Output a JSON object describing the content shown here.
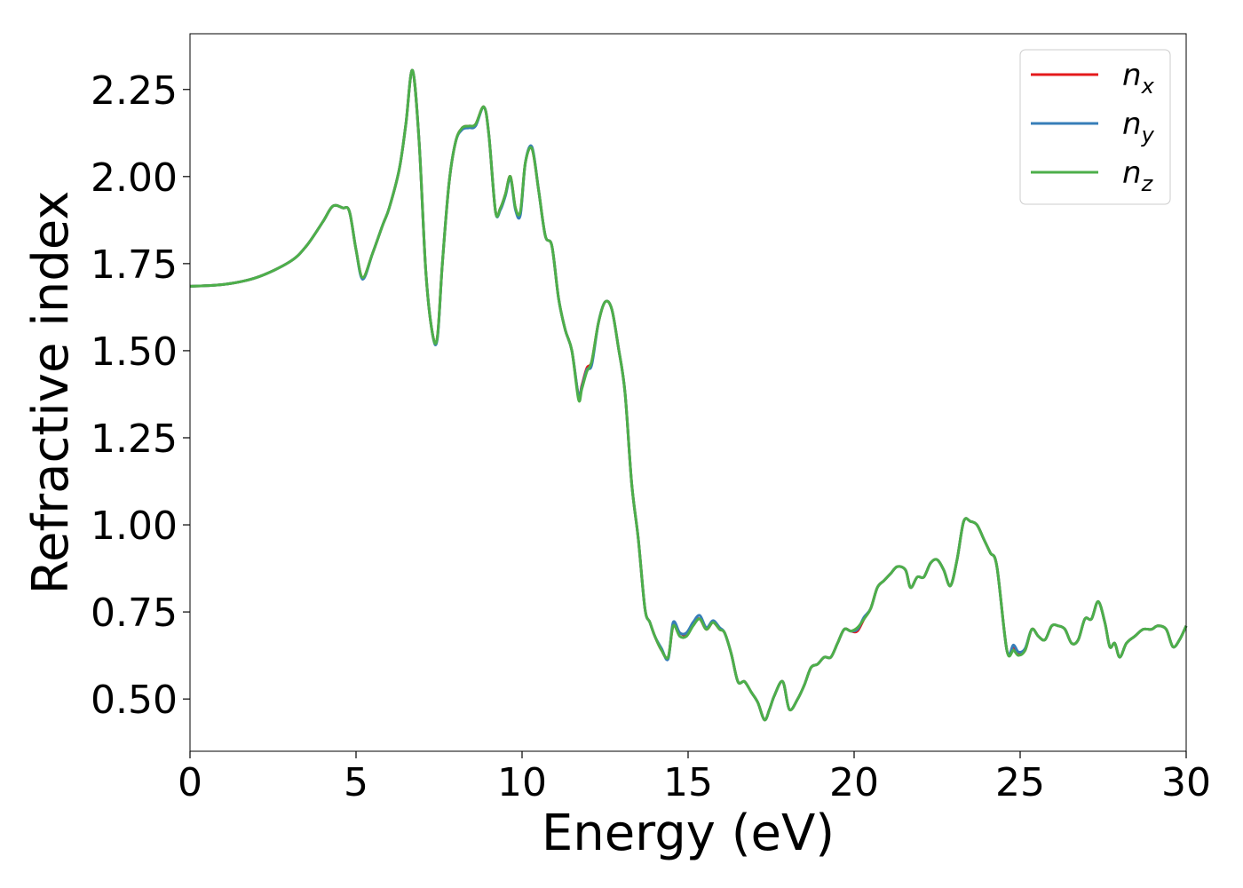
{
  "chart_data": {
    "type": "line",
    "xlabel": "Energy (eV)",
    "ylabel": "Refractive index",
    "xlim": [
      0,
      30
    ],
    "ylim": [
      0.35,
      2.41
    ],
    "xticks": [
      0,
      5,
      10,
      15,
      20,
      25,
      30
    ],
    "xtick_labels": [
      "0",
      "5",
      "10",
      "15",
      "20",
      "25",
      "30"
    ],
    "yticks": [
      0.5,
      0.75,
      1.0,
      1.25,
      1.5,
      1.75,
      2.0,
      2.25
    ],
    "ytick_labels": [
      "0.50",
      "0.75",
      "1.00",
      "1.25",
      "1.50",
      "1.75",
      "2.00",
      "2.25"
    ],
    "grid": false,
    "legend_position": "top-right",
    "x": [
      0,
      1,
      2,
      3,
      3.5,
      4,
      4.3,
      4.6,
      4.8,
      5.0,
      5.2,
      5.5,
      5.8,
      6.0,
      6.3,
      6.5,
      6.7,
      6.9,
      7.1,
      7.3,
      7.45,
      7.6,
      7.8,
      8.0,
      8.2,
      8.4,
      8.6,
      8.85,
      9.0,
      9.2,
      9.35,
      9.5,
      9.65,
      9.8,
      9.95,
      10.1,
      10.3,
      10.5,
      10.7,
      10.9,
      11.1,
      11.3,
      11.5,
      11.7,
      11.8,
      11.95,
      12.1,
      12.3,
      12.5,
      12.7,
      12.9,
      13.1,
      13.3,
      13.5,
      13.7,
      13.85,
      14.0,
      14.2,
      14.4,
      14.55,
      14.75,
      14.95,
      15.15,
      15.35,
      15.55,
      15.75,
      15.95,
      16.1,
      16.3,
      16.5,
      16.7,
      16.9,
      17.1,
      17.3,
      17.45,
      17.6,
      17.85,
      18.05,
      18.3,
      18.5,
      18.7,
      18.9,
      19.1,
      19.3,
      19.5,
      19.7,
      19.9,
      20.1,
      20.3,
      20.5,
      20.7,
      20.9,
      21.1,
      21.3,
      21.55,
      21.7,
      21.9,
      22.1,
      22.3,
      22.5,
      22.7,
      22.9,
      23.1,
      23.3,
      23.5,
      23.7,
      23.9,
      24.1,
      24.3,
      24.6,
      24.8,
      24.95,
      25.15,
      25.35,
      25.55,
      25.75,
      25.95,
      26.15,
      26.35,
      26.55,
      26.75,
      26.95,
      27.15,
      27.35,
      27.55,
      27.7,
      27.85,
      28.0,
      28.2,
      28.45,
      28.7,
      28.95,
      29.15,
      29.4,
      29.6,
      29.8,
      30.0
    ],
    "series": [
      {
        "name": "n_x",
        "label_main": "n",
        "label_sub": "x",
        "color": "#e41a1c",
        "values": [
          1.685,
          1.69,
          1.71,
          1.755,
          1.8,
          1.87,
          1.915,
          1.91,
          1.9,
          1.79,
          1.71,
          1.78,
          1.86,
          1.91,
          2.02,
          2.15,
          2.305,
          2.1,
          1.73,
          1.55,
          1.54,
          1.75,
          1.98,
          2.1,
          2.14,
          2.145,
          2.15,
          2.2,
          2.12,
          1.9,
          1.91,
          1.95,
          2.0,
          1.91,
          1.895,
          2.04,
          2.08,
          1.96,
          1.83,
          1.8,
          1.65,
          1.56,
          1.5,
          1.37,
          1.4,
          1.45,
          1.47,
          1.58,
          1.64,
          1.62,
          1.51,
          1.38,
          1.12,
          0.96,
          0.76,
          0.72,
          0.68,
          0.64,
          0.62,
          0.71,
          0.69,
          0.685,
          0.72,
          0.73,
          0.7,
          0.72,
          0.7,
          0.69,
          0.63,
          0.55,
          0.55,
          0.52,
          0.49,
          0.44,
          0.47,
          0.51,
          0.55,
          0.47,
          0.5,
          0.54,
          0.59,
          0.6,
          0.62,
          0.62,
          0.66,
          0.7,
          0.695,
          0.695,
          0.73,
          0.76,
          0.82,
          0.84,
          0.86,
          0.88,
          0.87,
          0.82,
          0.85,
          0.85,
          0.89,
          0.9,
          0.87,
          0.825,
          0.9,
          1.01,
          1.01,
          1.0,
          0.96,
          0.92,
          0.88,
          0.64,
          0.65,
          0.63,
          0.64,
          0.7,
          0.68,
          0.67,
          0.71,
          0.71,
          0.7,
          0.66,
          0.67,
          0.73,
          0.73,
          0.78,
          0.72,
          0.65,
          0.66,
          0.62,
          0.66,
          0.68,
          0.7,
          0.7,
          0.71,
          0.7,
          0.65,
          0.67,
          0.71
        ]
      },
      {
        "name": "n_y",
        "label_main": "n",
        "label_sub": "y",
        "color": "#377eb8",
        "values": [
          1.685,
          1.69,
          1.71,
          1.755,
          1.8,
          1.87,
          1.915,
          1.91,
          1.9,
          1.79,
          1.705,
          1.78,
          1.86,
          1.91,
          2.02,
          2.15,
          2.305,
          2.1,
          1.73,
          1.55,
          1.535,
          1.75,
          1.98,
          2.1,
          2.135,
          2.14,
          2.145,
          2.2,
          2.12,
          1.9,
          1.905,
          1.945,
          1.995,
          1.905,
          1.89,
          2.04,
          2.085,
          1.96,
          1.83,
          1.8,
          1.65,
          1.56,
          1.5,
          1.37,
          1.395,
          1.445,
          1.46,
          1.58,
          1.64,
          1.62,
          1.51,
          1.38,
          1.12,
          0.96,
          0.76,
          0.72,
          0.68,
          0.645,
          0.615,
          0.72,
          0.69,
          0.69,
          0.72,
          0.74,
          0.705,
          0.725,
          0.705,
          0.69,
          0.63,
          0.55,
          0.55,
          0.52,
          0.49,
          0.44,
          0.47,
          0.51,
          0.55,
          0.47,
          0.5,
          0.54,
          0.59,
          0.6,
          0.62,
          0.62,
          0.66,
          0.7,
          0.695,
          0.7,
          0.735,
          0.76,
          0.82,
          0.84,
          0.86,
          0.88,
          0.87,
          0.82,
          0.85,
          0.85,
          0.89,
          0.9,
          0.87,
          0.825,
          0.9,
          1.01,
          1.01,
          1.0,
          0.96,
          0.92,
          0.88,
          0.64,
          0.655,
          0.635,
          0.645,
          0.7,
          0.68,
          0.67,
          0.71,
          0.71,
          0.7,
          0.66,
          0.67,
          0.73,
          0.73,
          0.78,
          0.72,
          0.65,
          0.66,
          0.62,
          0.66,
          0.68,
          0.7,
          0.7,
          0.71,
          0.7,
          0.65,
          0.67,
          0.71
        ]
      },
      {
        "name": "n_z",
        "label_main": "n",
        "label_sub": "z",
        "color": "#4daf4a",
        "values": [
          1.685,
          1.69,
          1.71,
          1.755,
          1.8,
          1.87,
          1.915,
          1.91,
          1.9,
          1.79,
          1.71,
          1.78,
          1.86,
          1.91,
          2.02,
          2.15,
          2.305,
          2.1,
          1.73,
          1.55,
          1.54,
          1.75,
          1.98,
          2.1,
          2.14,
          2.145,
          2.15,
          2.2,
          2.12,
          1.9,
          1.91,
          1.95,
          2.0,
          1.91,
          1.9,
          2.04,
          2.08,
          1.96,
          1.83,
          1.8,
          1.65,
          1.56,
          1.5,
          1.36,
          1.39,
          1.44,
          1.47,
          1.58,
          1.64,
          1.62,
          1.51,
          1.38,
          1.12,
          0.96,
          0.76,
          0.72,
          0.68,
          0.64,
          0.62,
          0.71,
          0.68,
          0.68,
          0.71,
          0.73,
          0.7,
          0.72,
          0.7,
          0.69,
          0.63,
          0.55,
          0.55,
          0.52,
          0.49,
          0.44,
          0.47,
          0.51,
          0.55,
          0.47,
          0.5,
          0.54,
          0.59,
          0.6,
          0.62,
          0.62,
          0.66,
          0.7,
          0.695,
          0.705,
          0.73,
          0.76,
          0.82,
          0.84,
          0.86,
          0.88,
          0.87,
          0.82,
          0.85,
          0.85,
          0.89,
          0.9,
          0.87,
          0.825,
          0.9,
          1.01,
          1.01,
          1.0,
          0.96,
          0.92,
          0.88,
          0.64,
          0.64,
          0.625,
          0.64,
          0.7,
          0.68,
          0.67,
          0.71,
          0.71,
          0.7,
          0.66,
          0.67,
          0.73,
          0.73,
          0.78,
          0.72,
          0.65,
          0.66,
          0.62,
          0.66,
          0.68,
          0.7,
          0.7,
          0.71,
          0.7,
          0.65,
          0.67,
          0.71
        ]
      }
    ]
  }
}
